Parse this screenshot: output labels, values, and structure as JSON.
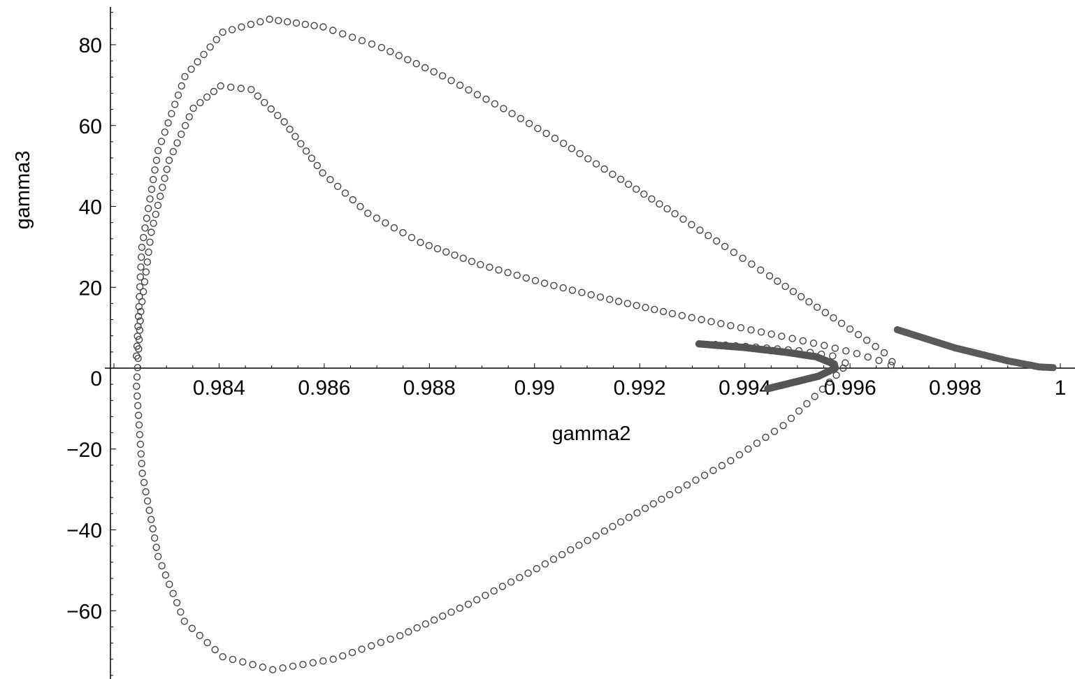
{
  "chart_data": {
    "type": "scatter",
    "title": "",
    "xlabel": "gamma2",
    "ylabel": "gamma3",
    "xlim": [
      0.9821,
      1.0001
    ],
    "ylim": [
      -77,
      90
    ],
    "grid": false,
    "x_ticks": [
      {
        "value": 0.984,
        "label": "0.984"
      },
      {
        "value": 0.986,
        "label": "0.986"
      },
      {
        "value": 0.988,
        "label": "0.988"
      },
      {
        "value": 0.99,
        "label": "0.99"
      },
      {
        "value": 0.992,
        "label": "0.992"
      },
      {
        "value": 0.994,
        "label": "0.994"
      },
      {
        "value": 0.996,
        "label": "0.996"
      },
      {
        "value": 0.998,
        "label": "0.998"
      },
      {
        "value": 1.0,
        "label": "1"
      }
    ],
    "y_ticks": [
      {
        "value": -60,
        "label": "−60"
      },
      {
        "value": -40,
        "label": "−40"
      },
      {
        "value": -20,
        "label": "−20"
      },
      {
        "value": 0,
        "label": "0"
      },
      {
        "value": 20,
        "label": "20"
      },
      {
        "value": 40,
        "label": "40"
      },
      {
        "value": 60,
        "label": "60"
      },
      {
        "value": 80,
        "label": "80"
      }
    ],
    "series": [
      {
        "marker": "open-circle",
        "color": "#444444",
        "x": [
          0.98243,
          0.98253,
          0.98284,
          0.98335,
          0.98407,
          0.98496,
          0.98598,
          0.98709,
          0.98825,
          0.98941,
          0.99055,
          0.99164,
          0.99267,
          0.99362,
          0.99447,
          0.99522,
          0.99584,
          0.99632,
          0.99665,
          0.9968,
          0.99678,
          0.99655,
          0.99613,
          0.99551,
          0.9947,
          0.99373,
          0.99262,
          0.99143,
          0.99019,
          0.98897,
          0.98783,
          0.98683,
          0.98597,
          0.98524,
          0.98461,
          0.98403,
          0.98351,
          0.98305,
          0.98271,
          0.98251,
          0.98243
        ],
        "y": [
          3.0,
          29.9,
          53.8,
          72.1,
          83.1,
          86.3,
          84.4,
          79.3,
          72.3,
          64.2,
          55.6,
          46.7,
          38.2,
          30.1,
          22.8,
          16.4,
          11.1,
          6.9,
          3.8,
          1.6,
          0.7,
          1.9,
          3.6,
          5.6,
          7.9,
          10.5,
          13.5,
          17.0,
          21.0,
          25.6,
          31.1,
          38.3,
          48.3,
          60.9,
          68.9,
          69.8,
          64.3,
          51.4,
          33.6,
          14.0,
          -4.5
        ],
        "y_note": "upper arc then cusp"
      },
      {
        "marker": "open-circle",
        "color": "#444444",
        "x": [
          0.98243,
          0.98254,
          0.98284,
          0.98334,
          0.98407,
          0.98502,
          0.98617,
          0.98744,
          0.98874,
          0.99004,
          0.99133,
          0.99257,
          0.99373,
          0.99473,
          0.99548,
          0.99587,
          0.99591,
          0.99567,
          0.99503,
          0.99421,
          0.99325
        ],
        "y": [
          -4.5,
          -26.0,
          -46.6,
          -62.6,
          -71.4,
          -74.6,
          -72.0,
          -66.2,
          -58.4,
          -49.6,
          -40.3,
          -31.3,
          -22.9,
          -14.2,
          -5.2,
          0.0,
          1.3,
          3.0,
          4.3,
          5.2,
          6.0
        ]
      }
    ]
  }
}
